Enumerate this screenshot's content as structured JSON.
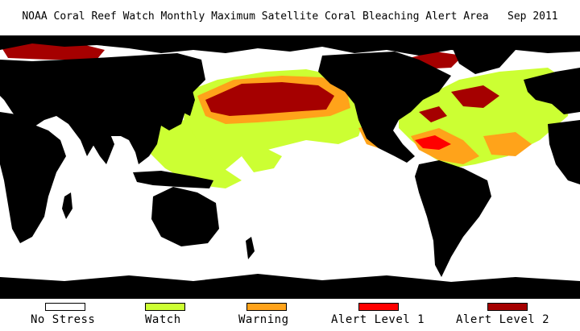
{
  "title": "NOAA Coral Reef Watch Monthly Maximum Satellite Coral Bleaching Alert Area   Sep 2011",
  "legend": [
    {
      "label": "No Stress",
      "color": "#ffffff"
    },
    {
      "label": "Watch",
      "color": "#ccff33"
    },
    {
      "label": "Warning",
      "color": "#ffa31a"
    },
    {
      "label": "Alert Level 1",
      "color": "#ff0000"
    },
    {
      "label": "Alert Level 2",
      "color": "#a50000"
    }
  ],
  "colors": {
    "land": "#000000",
    "ocean_no_stress": "#ffffff"
  }
}
